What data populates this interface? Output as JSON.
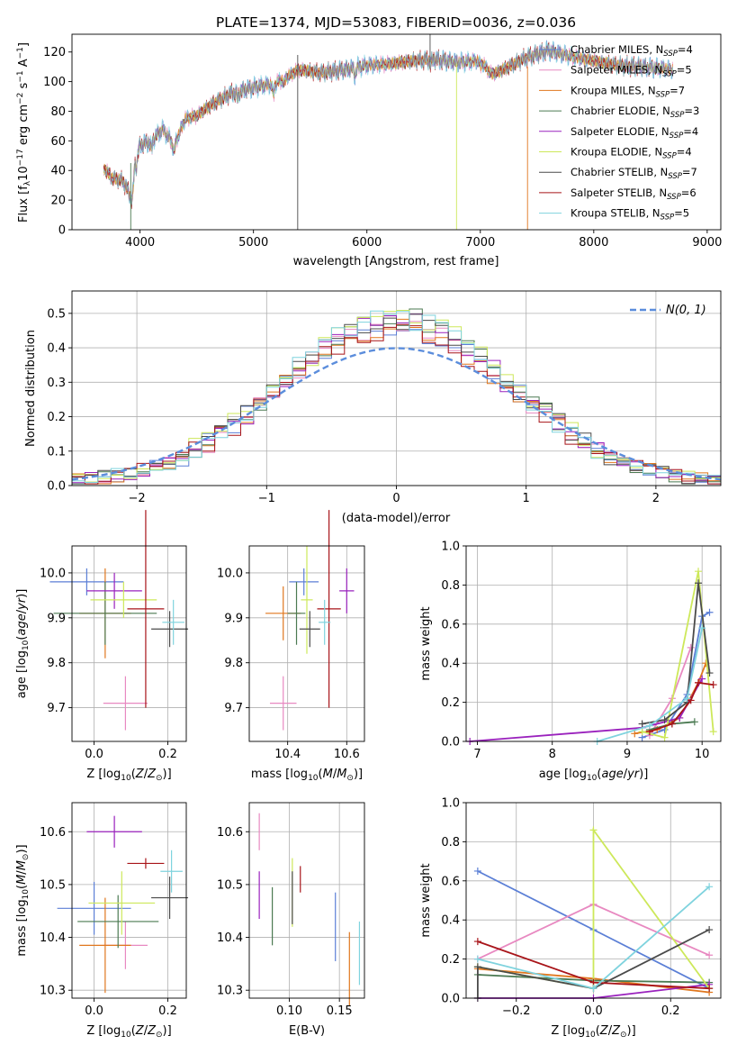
{
  "title": "PLATE=1374, MJD=53083, FIBERID=0036, z=0.036",
  "colors": {
    "chabrier_miles": "#5b7fd6",
    "salpeter_miles": "#e889c1",
    "kroupa_miles": "#e0771e",
    "chabrier_elodie": "#4b7a52",
    "salpeter_elodie": "#9a22bd",
    "kroupa_elodie": "#cde85a",
    "chabrier_stelib": "#4a4a4a",
    "salpeter_stelib": "#a81419",
    "kroupa_stelib": "#7fd3de",
    "gaussian": "#5b8ddc",
    "grid": "#b0b0b0"
  },
  "chart_data": [
    {
      "type": "line",
      "panel": "spectrum",
      "xlabel": "wavelength [Angstrom, rest frame]",
      "ylabel": "Flux [f_λ 10^-17 erg cm^-2 s^-1 A^-1]",
      "xlim": [
        3400,
        9120
      ],
      "ylim": [
        0,
        132
      ],
      "xticks": [
        4000,
        5000,
        6000,
        7000,
        8000,
        9000
      ],
      "yticks": [
        0,
        20,
        40,
        60,
        80,
        100,
        120
      ],
      "grid": false,
      "legend_position": "right",
      "spectrum_envelope": {
        "x": [
          3680,
          3750,
          3850,
          3920,
          3960,
          4000,
          4100,
          4200,
          4300,
          4400,
          4500,
          4600,
          4800,
          5000,
          5200,
          5400,
          5600,
          5800,
          6000,
          6200,
          6400,
          6600,
          6800,
          7000,
          7100,
          7200,
          7400,
          7600,
          7800,
          8000,
          8200,
          8400,
          8600,
          8700
        ],
        "y": [
          42,
          35,
          33,
          22,
          48,
          57,
          60,
          68,
          57,
          75,
          77,
          83,
          92,
          96,
          99,
          108,
          106,
          108,
          111,
          112,
          114,
          115,
          113,
          114,
          105,
          108,
          116,
          121,
          117,
          114,
          111,
          110,
          109,
          108
        ]
      },
      "series": [
        {
          "name": "Chabrier MILES, N_SSP=4"
        },
        {
          "name": "Salpeter MILES, N_SSP=5"
        },
        {
          "name": "Kroupa MILES, N_SSP=7"
        },
        {
          "name": "Chabrier ELODIE, N_SSP=3"
        },
        {
          "name": "Salpeter ELODIE, N_SSP=4"
        },
        {
          "name": "Kroupa ELODIE, N_SSP=4"
        },
        {
          "name": "Chabrier STELIB, N_SSP=7"
        },
        {
          "name": "Salpeter STELIB, N_SSP=6"
        },
        {
          "name": "Kroupa STELIB, N_SSP=5"
        }
      ]
    },
    {
      "type": "line",
      "panel": "residual-histogram",
      "xlabel": "(data-model)/error",
      "ylabel": "Normed distribution",
      "xlim": [
        -2.5,
        2.5
      ],
      "ylim": [
        0,
        0.565
      ],
      "xticks": [
        -2,
        -1,
        0,
        1,
        2
      ],
      "yticks": [
        0.0,
        0.1,
        0.2,
        0.3,
        0.4,
        0.5
      ],
      "grid": true,
      "legend_position": "top-right",
      "legend": "N(0, 1)",
      "gaussian": {
        "mean": 0,
        "sigma": 1
      }
    },
    {
      "type": "scatter",
      "panel": "age-vs-Z",
      "xlabel": "Z [log10(Z/Z_sun)]",
      "ylabel": "age [log10(age/yr)]",
      "xlim": [
        -0.06,
        0.25
      ],
      "ylim": [
        9.625,
        10.06
      ],
      "xticks": [
        0.0,
        0.2
      ],
      "yticks": [
        9.7,
        9.8,
        9.9,
        10.0
      ],
      "grid": true,
      "points": [
        {
          "x": -0.02,
          "y": 9.98,
          "xerr": 0.1,
          "yerr": 0.03
        },
        {
          "x": 0.085,
          "y": 9.71,
          "xerr": 0.06,
          "yerr": 0.06
        },
        {
          "x": 0.03,
          "y": 9.91,
          "xerr": 0.07,
          "yerr": 0.1
        },
        {
          "x": 0.03,
          "y": 9.91,
          "xerr": 0.14,
          "yerr": 0.07
        },
        {
          "x": 0.055,
          "y": 9.96,
          "xerr": 0.075,
          "yerr": 0.04
        },
        {
          "x": 0.08,
          "y": 9.94,
          "xerr": 0.09,
          "yerr": 0.04
        },
        {
          "x": 0.205,
          "y": 9.875,
          "xerr": 0.05,
          "yerr": 0.04
        },
        {
          "x": 0.14,
          "y": 9.92,
          "xerr": 0.05,
          "yerr": 0.22
        },
        {
          "x": 0.215,
          "y": 9.89,
          "xerr": 0.03,
          "yerr": 0.05
        }
      ]
    },
    {
      "type": "scatter",
      "panel": "age-vs-mass",
      "xlabel": "mass [log10(M/M_sun)]",
      "ylabel": "",
      "xlim": [
        10.27,
        10.66
      ],
      "ylim": [
        9.625,
        10.06
      ],
      "xticks": [
        10.4,
        10.6
      ],
      "yticks": [
        9.7,
        9.8,
        9.9,
        10.0
      ],
      "grid": true,
      "points": [
        {
          "x": 10.455,
          "y": 9.98,
          "xerr": 0.05,
          "yerr": 0.03
        },
        {
          "x": 10.385,
          "y": 9.71,
          "xerr": 0.045,
          "yerr": 0.06
        },
        {
          "x": 10.385,
          "y": 9.91,
          "xerr": 0.06,
          "yerr": 0.06
        },
        {
          "x": 10.43,
          "y": 9.91,
          "xerr": 0.03,
          "yerr": 0.07
        },
        {
          "x": 10.6,
          "y": 9.96,
          "xerr": 0.025,
          "yerr": 0.05
        },
        {
          "x": 10.465,
          "y": 9.94,
          "xerr": 0.02,
          "yerr": 0.12
        },
        {
          "x": 10.475,
          "y": 9.875,
          "xerr": 0.035,
          "yerr": 0.04
        },
        {
          "x": 10.54,
          "y": 9.92,
          "xerr": 0.04,
          "yerr": 0.22
        },
        {
          "x": 10.525,
          "y": 9.89,
          "xerr": 0.02,
          "yerr": 0.05
        }
      ]
    },
    {
      "type": "line",
      "panel": "mass-weight-vs-age",
      "xlabel": "age [log10(age/yr)]",
      "ylabel": "mass weight",
      "xlim": [
        6.85,
        10.25
      ],
      "ylim": [
        0,
        1.0
      ],
      "xticks": [
        7,
        8,
        9,
        10
      ],
      "yticks": [
        0.0,
        0.2,
        0.4,
        0.6,
        0.8,
        1.0
      ],
      "grid": true,
      "series": [
        {
          "x": [
            9.2,
            9.5,
            9.8,
            10.0,
            10.1
          ],
          "y": [
            0.02,
            0.06,
            0.24,
            0.64,
            0.66
          ]
        },
        {
          "x": [
            9.3,
            9.6,
            9.85
          ],
          "y": [
            0.03,
            0.22,
            0.48
          ]
        },
        {
          "x": [
            9.1,
            9.4,
            9.7,
            9.95,
            10.05
          ],
          "y": [
            0.04,
            0.06,
            0.12,
            0.3,
            0.4
          ]
        },
        {
          "x": [
            9.3,
            9.6,
            9.9
          ],
          "y": [
            0.06,
            0.09,
            0.1
          ]
        },
        {
          "x": [
            6.9,
            9.2,
            9.7,
            10.0
          ],
          "y": [
            0.0,
            0.07,
            0.12,
            0.32
          ]
        },
        {
          "x": [
            9.2,
            9.5,
            9.95,
            10.15
          ],
          "y": [
            0.05,
            0.02,
            0.87,
            0.05
          ]
        },
        {
          "x": [
            9.2,
            9.5,
            9.8,
            9.95,
            10.1
          ],
          "y": [
            0.09,
            0.11,
            0.2,
            0.81,
            0.35
          ]
        },
        {
          "x": [
            9.3,
            9.6,
            9.85,
            9.95,
            10.15
          ],
          "y": [
            0.05,
            0.09,
            0.21,
            0.3,
            0.29
          ]
        },
        {
          "x": [
            8.6,
            9.3,
            9.8,
            10.0
          ],
          "y": [
            0.0,
            0.08,
            0.22,
            0.58
          ]
        }
      ]
    },
    {
      "type": "scatter",
      "panel": "mass-vs-Z",
      "xlabel": "Z [log10(Z/Z_sun)]",
      "ylabel": "mass [log10(M/M_sun)]",
      "xlim": [
        -0.06,
        0.25
      ],
      "ylim": [
        10.285,
        10.655
      ],
      "xticks": [
        0.0,
        0.2
      ],
      "yticks": [
        10.3,
        10.4,
        10.5,
        10.6
      ],
      "grid": true,
      "points": [
        {
          "x": 0.0,
          "y": 10.455,
          "xerr": 0.1,
          "yerr": 0.05
        },
        {
          "x": 0.085,
          "y": 10.385,
          "xerr": 0.06,
          "yerr": 0.045
        },
        {
          "x": 0.03,
          "y": 10.385,
          "xerr": 0.07,
          "yerr": 0.09
        },
        {
          "x": 0.065,
          "y": 10.43,
          "xerr": 0.11,
          "yerr": 0.05
        },
        {
          "x": 0.055,
          "y": 10.6,
          "xerr": 0.075,
          "yerr": 0.03
        },
        {
          "x": 0.075,
          "y": 10.465,
          "xerr": 0.09,
          "yerr": 0.06
        },
        {
          "x": 0.205,
          "y": 10.475,
          "xerr": 0.05,
          "yerr": 0.04
        },
        {
          "x": 0.14,
          "y": 10.54,
          "xerr": 0.05,
          "yerr": 0.01
        },
        {
          "x": 0.21,
          "y": 10.525,
          "xerr": 0.03,
          "yerr": 0.04
        }
      ]
    },
    {
      "type": "scatter",
      "panel": "mass-vs-EBV",
      "xlabel": "E(B-V)",
      "ylabel": "",
      "xlim": [
        0.06,
        0.175
      ],
      "ylim": [
        10.285,
        10.655
      ],
      "xticks": [
        0.05,
        0.1,
        0.15
      ],
      "yticks": [
        10.3,
        10.4,
        10.5,
        10.6
      ],
      "grid": true,
      "points": [
        {
          "x": 0.146,
          "y": 10.42,
          "yerr": 0.065
        },
        {
          "x": 0.07,
          "y": 10.6,
          "yerr": 0.035
        },
        {
          "x": 0.16,
          "y": 10.34,
          "yerr": 0.07
        },
        {
          "x": 0.083,
          "y": 10.44,
          "yerr": 0.055
        },
        {
          "x": 0.07,
          "y": 10.48,
          "yerr": 0.045
        },
        {
          "x": 0.103,
          "y": 10.485,
          "yerr": 0.065
        },
        {
          "x": 0.103,
          "y": 10.475,
          "yerr": 0.05
        },
        {
          "x": 0.111,
          "y": 10.51,
          "yerr": 0.025
        },
        {
          "x": 0.17,
          "y": 10.37,
          "yerr": 0.06
        }
      ]
    },
    {
      "type": "line",
      "panel": "mass-weight-vs-Z",
      "xlabel": "Z [log10(Z/Z_sun)]",
      "ylabel": "mass weight",
      "xlim": [
        -0.33,
        0.33
      ],
      "ylim": [
        0,
        1.0
      ],
      "xticks": [
        -0.2,
        0.0,
        0.2
      ],
      "yticks": [
        0.0,
        0.2,
        0.4,
        0.6,
        0.8,
        1.0
      ],
      "grid": true,
      "series": [
        {
          "x": [
            -0.3,
            0.0,
            0.3
          ],
          "y": [
            0.65,
            0.35,
            0.05
          ]
        },
        {
          "x": [
            -0.3,
            0.0,
            0.3
          ],
          "y": [
            0.2,
            0.48,
            0.22
          ]
        },
        {
          "x": [
            -0.3,
            0.0,
            0.3
          ],
          "y": [
            0.15,
            0.1,
            0.03
          ]
        },
        {
          "x": [
            -0.3,
            0.0,
            0.3
          ],
          "y": [
            0.12,
            0.09,
            0.08
          ]
        },
        {
          "x": [
            -0.3,
            0.0,
            0.3
          ],
          "y": [
            0.0,
            0.0,
            0.07
          ]
        },
        {
          "x": [
            -0.3,
            0.0,
            0.0,
            0.3
          ],
          "y": [
            0.16,
            0.05,
            0.86,
            0.05
          ]
        },
        {
          "x": [
            -0.3,
            -0.3,
            0.0,
            0.3
          ],
          "y": [
            0.0,
            0.16,
            0.05,
            0.35
          ]
        },
        {
          "x": [
            -0.3,
            0.0,
            0.3
          ],
          "y": [
            0.29,
            0.08,
            0.05
          ]
        },
        {
          "x": [
            -0.3,
            0.0,
            0.3
          ],
          "y": [
            0.2,
            0.05,
            0.57
          ]
        }
      ]
    }
  ]
}
